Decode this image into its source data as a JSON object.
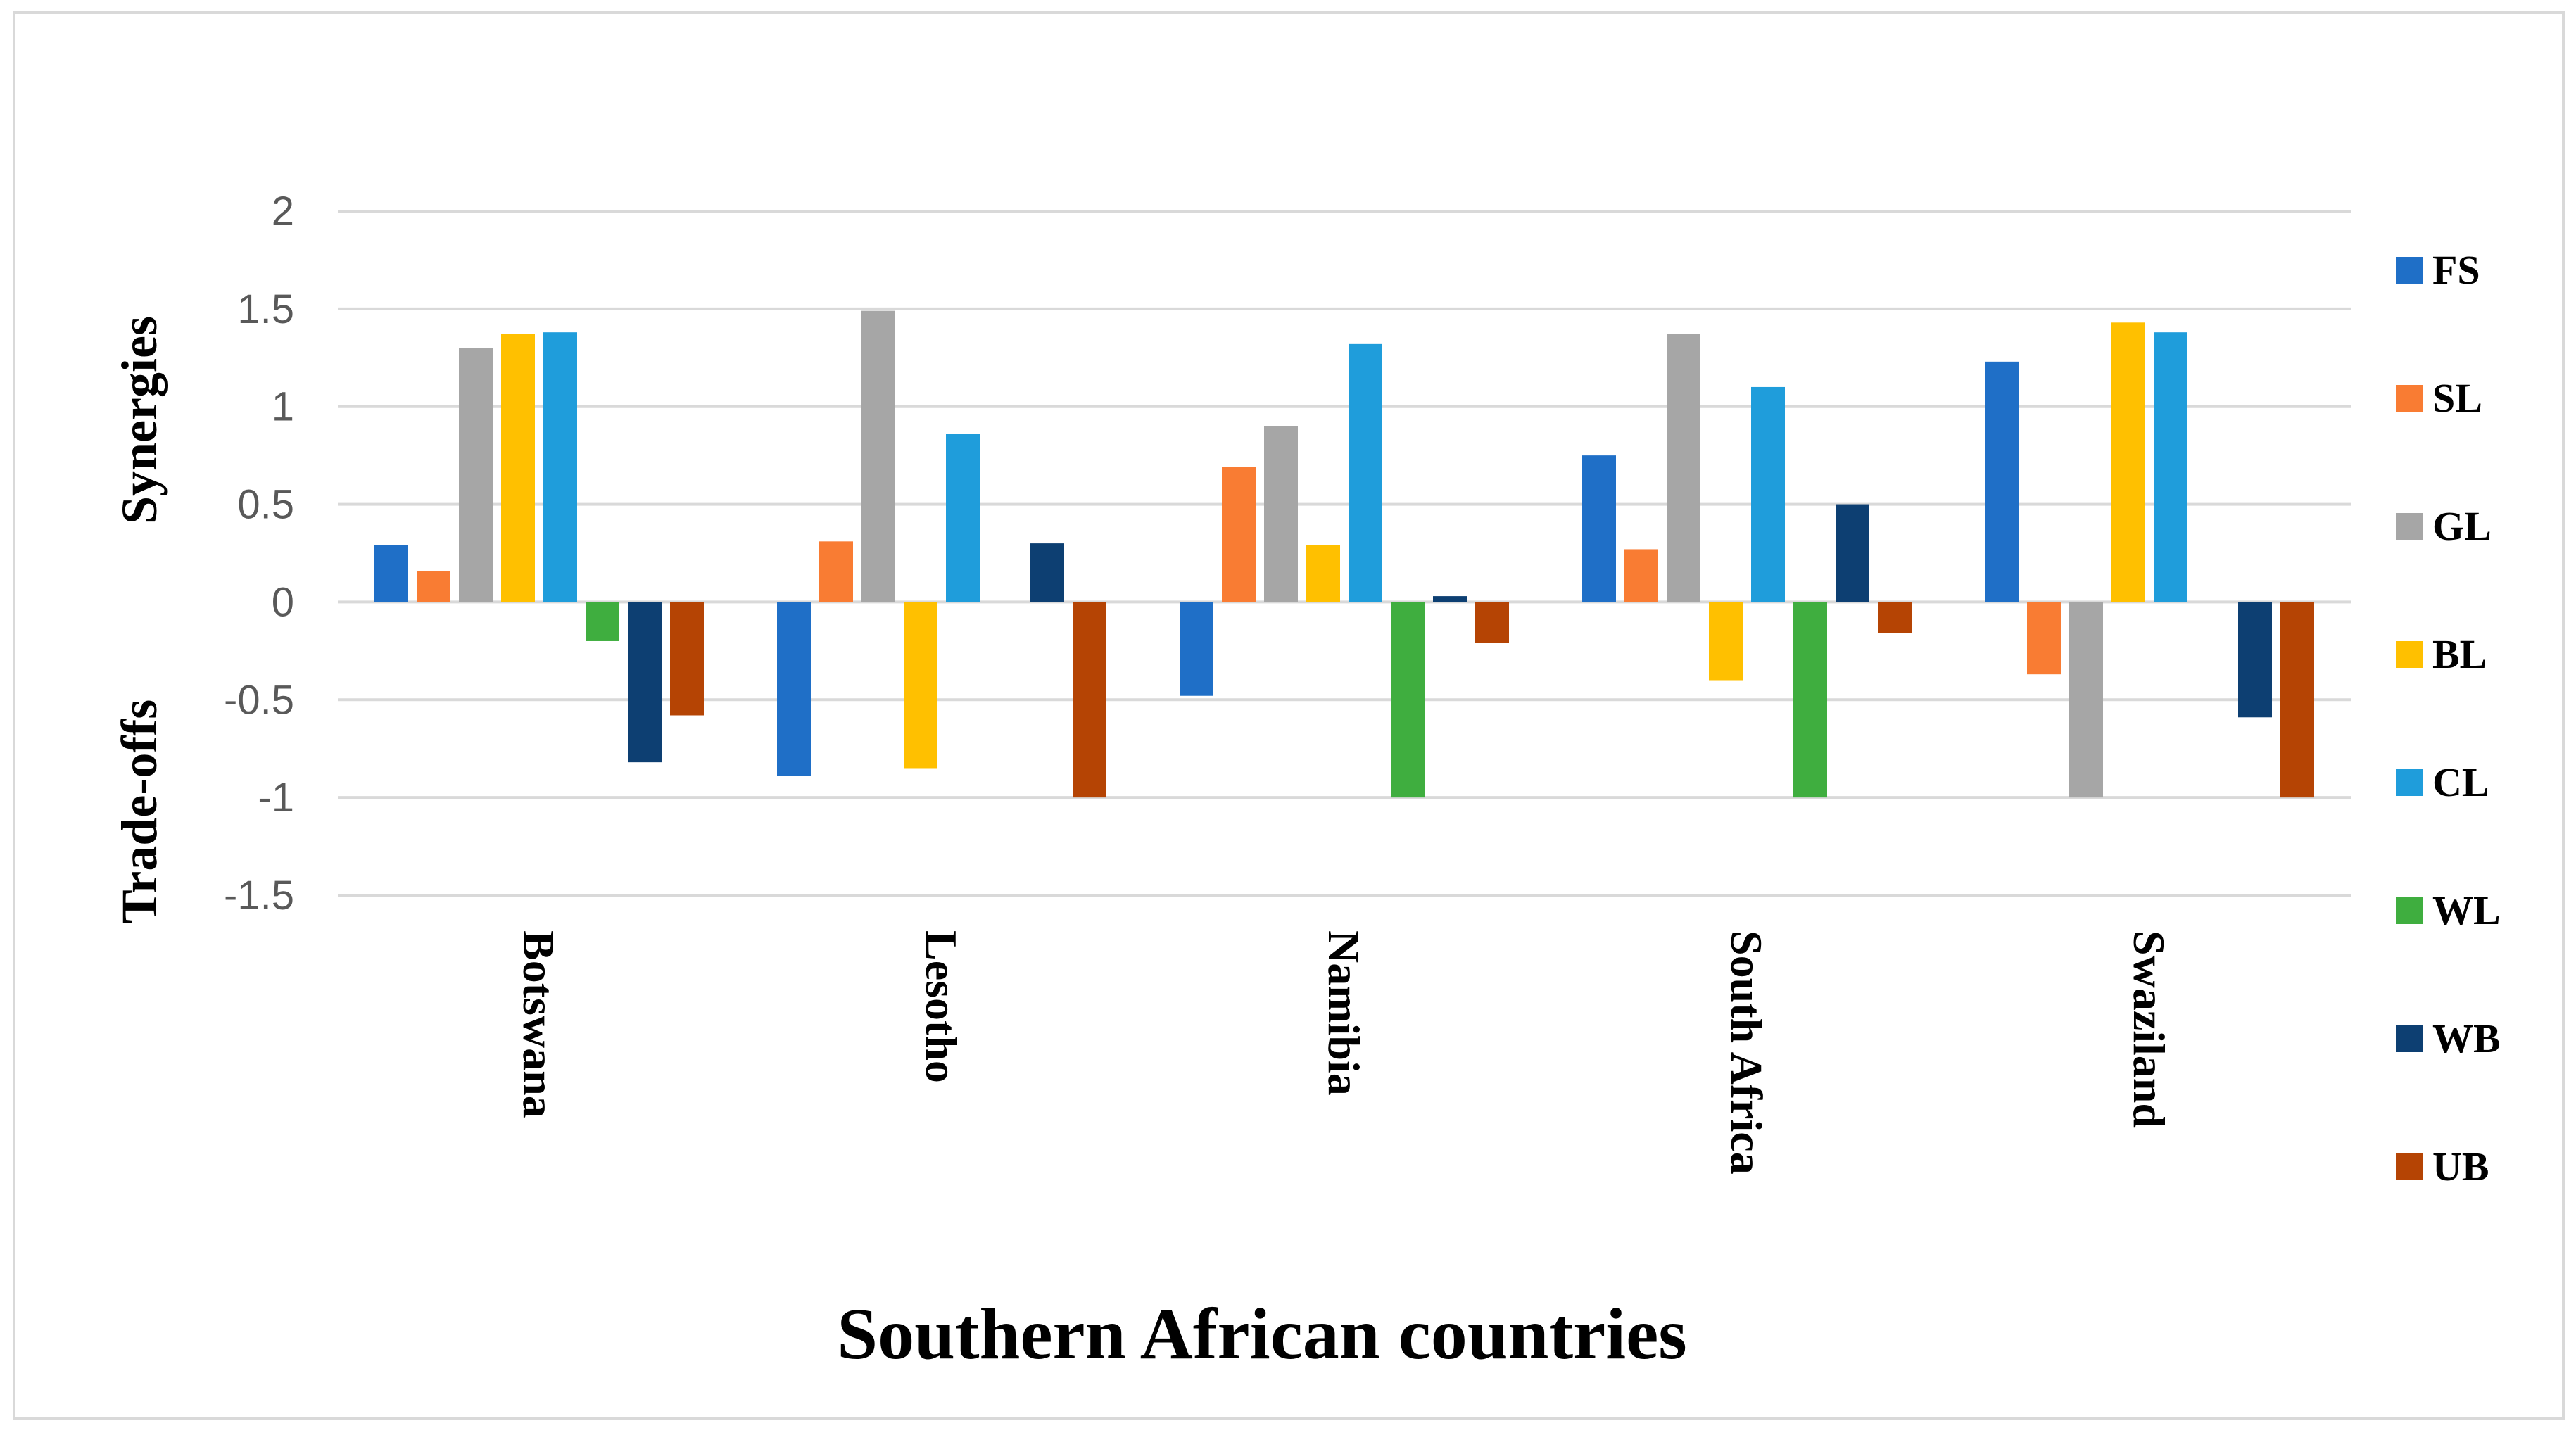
{
  "chart_data": {
    "type": "bar",
    "title": "",
    "xlabel": "Southern African countries",
    "ylabel_positive": "Synergies",
    "ylabel_negative": "Trade-offs",
    "ylim": [
      -1.5,
      2
    ],
    "yticks": [
      2,
      1.5,
      1,
      0.5,
      0,
      -0.5,
      -1,
      -1.5
    ],
    "yticks_text": [
      "2",
      "1.5",
      "1",
      "0.5",
      "0",
      "-0.5",
      "-1",
      "-1.5"
    ],
    "legend_position": "right",
    "categories": [
      "Botswana",
      "Lesotho",
      "Namibia",
      "South Africa",
      "Swaziland"
    ],
    "series": [
      {
        "name": "FS",
        "color": "#1f6fc7",
        "values": [
          0.29,
          -0.89,
          -0.48,
          0.75,
          1.23
        ]
      },
      {
        "name": "SL",
        "color": "#f97c33",
        "values": [
          0.16,
          0.31,
          0.69,
          0.27,
          -0.37
        ]
      },
      {
        "name": "GL",
        "color": "#a6a6a6",
        "values": [
          1.3,
          1.49,
          0.9,
          1.37,
          -1.0
        ]
      },
      {
        "name": "BL",
        "color": "#ffc000",
        "values": [
          1.37,
          -0.85,
          0.29,
          -0.4,
          1.43
        ]
      },
      {
        "name": "CL",
        "color": "#1f9ddb",
        "values": [
          1.38,
          0.86,
          1.32,
          1.1,
          1.38
        ]
      },
      {
        "name": "WL",
        "color": "#3fae3f",
        "values": [
          -0.2,
          0,
          -1.0,
          -1.0,
          0
        ]
      },
      {
        "name": "WB",
        "color": "#0d3f72",
        "values": [
          -0.82,
          0.3,
          0.03,
          0.5,
          -0.59
        ]
      },
      {
        "name": "UB",
        "color": "#b54404",
        "values": [
          -0.58,
          -1.0,
          -0.21,
          -0.16,
          -1.0
        ]
      }
    ]
  }
}
